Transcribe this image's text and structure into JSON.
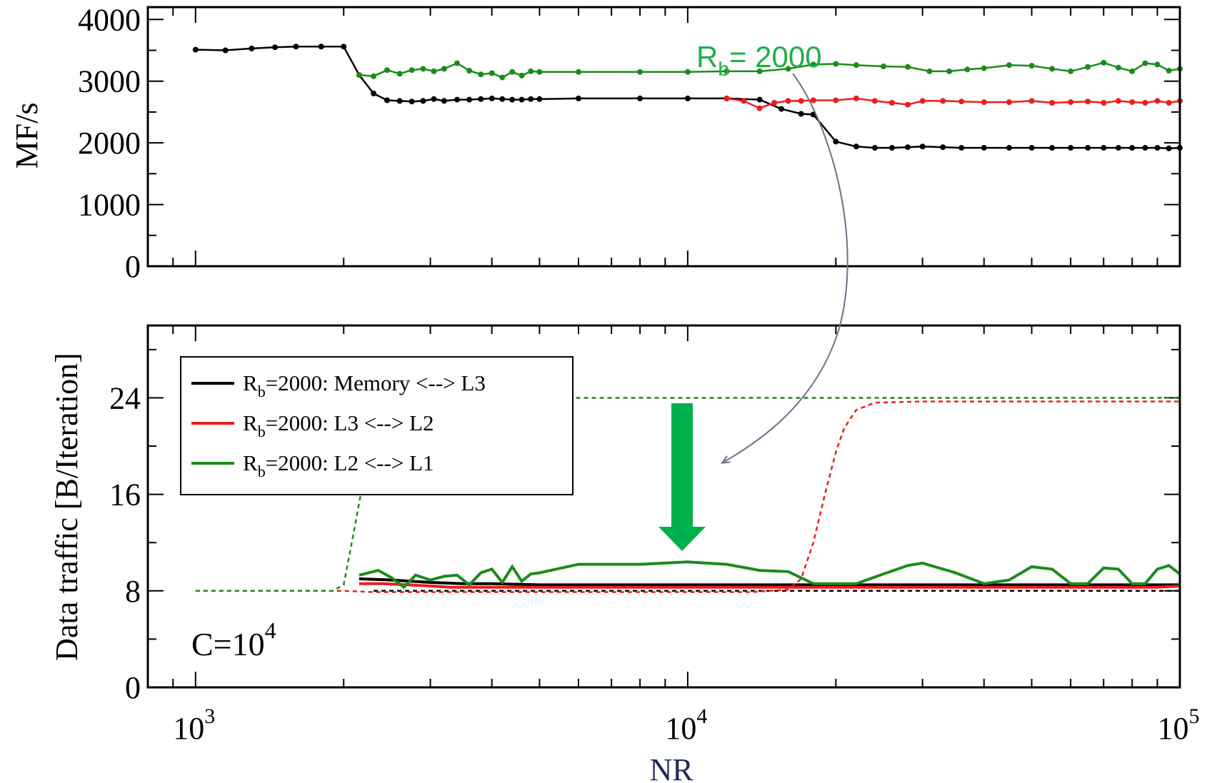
{
  "chart_data": [
    {
      "type": "line",
      "panel": "top",
      "ylabel": "MF/s",
      "ylim": [
        0,
        4200
      ],
      "yticks": [
        "0",
        "1000",
        "2000",
        "3000",
        "4000"
      ],
      "ytick_values": [
        0,
        1000,
        2000,
        3000,
        4000
      ],
      "xlim": [
        800,
        100000
      ],
      "xscale": "log",
      "annotation": {
        "prefix": "R",
        "sub": "b",
        "suffix": "= 2000",
        "color": "#1faf4b"
      },
      "series": [
        {
          "color": "#000000",
          "x": [
            1000,
            1150,
            1300,
            1450,
            1600,
            1800,
            2000,
            2150,
            2300,
            2450,
            2600,
            2750,
            2900,
            3050,
            3200,
            3400,
            3600,
            3800,
            4000,
            4200,
            4400,
            4600,
            4800,
            5000,
            6000,
            8000,
            10000,
            12000,
            14000,
            15500,
            17000,
            18000,
            20000,
            22000,
            24000,
            26000,
            28000,
            30000,
            33000,
            36000,
            40000,
            45000,
            50000,
            55000,
            60000,
            65000,
            70000,
            75000,
            80000,
            85000,
            90000,
            95000,
            100000
          ],
          "y": [
            3510,
            3500,
            3530,
            3550,
            3560,
            3560,
            3560,
            3100,
            2800,
            2690,
            2680,
            2670,
            2680,
            2710,
            2680,
            2700,
            2700,
            2710,
            2720,
            2710,
            2700,
            2700,
            2710,
            2710,
            2720,
            2720,
            2720,
            2720,
            2700,
            2550,
            2470,
            2460,
            2020,
            1940,
            1920,
            1920,
            1930,
            1940,
            1930,
            1920,
            1920,
            1920,
            1920,
            1920,
            1920,
            1920,
            1920,
            1920,
            1920,
            1920,
            1920,
            1910,
            1920
          ]
        },
        {
          "color": "#1a8c1a",
          "x": [
            2150,
            2300,
            2450,
            2600,
            2750,
            2900,
            3050,
            3200,
            3400,
            3600,
            3800,
            4000,
            4200,
            4400,
            4600,
            4800,
            5000,
            6000,
            8000,
            10000,
            12000,
            14000,
            16000,
            18000,
            20000,
            22000,
            25000,
            28000,
            31000,
            34000,
            37000,
            40000,
            45000,
            50000,
            55000,
            60000,
            65000,
            70000,
            75000,
            80000,
            85000,
            90000,
            95000,
            100000
          ],
          "y": [
            3100,
            3080,
            3180,
            3120,
            3180,
            3200,
            3160,
            3200,
            3290,
            3170,
            3110,
            3130,
            3060,
            3150,
            3090,
            3160,
            3150,
            3150,
            3150,
            3150,
            3160,
            3160,
            3200,
            3270,
            3280,
            3260,
            3240,
            3230,
            3160,
            3160,
            3190,
            3210,
            3260,
            3250,
            3200,
            3160,
            3230,
            3300,
            3220,
            3160,
            3290,
            3270,
            3170,
            3200
          ]
        },
        {
          "color": "#ee1c1c",
          "x": [
            12000,
            13000,
            14000,
            15000,
            16000,
            17000,
            18000,
            20000,
            22000,
            24000,
            26000,
            28000,
            30000,
            33000,
            36000,
            40000,
            45000,
            50000,
            55000,
            60000,
            65000,
            70000,
            75000,
            80000,
            85000,
            90000,
            95000,
            100000
          ],
          "y": [
            2720,
            2680,
            2560,
            2650,
            2680,
            2680,
            2690,
            2690,
            2720,
            2680,
            2650,
            2620,
            2680,
            2680,
            2670,
            2660,
            2660,
            2680,
            2650,
            2660,
            2670,
            2650,
            2680,
            2660,
            2650,
            2680,
            2650,
            2680
          ]
        }
      ]
    },
    {
      "type": "line",
      "panel": "bottom",
      "ylabel": "Data traffic [B/Iteration]",
      "ylim": [
        0,
        30
      ],
      "yticks": [
        "0",
        "8",
        "16",
        "24"
      ],
      "ytick_values": [
        0,
        8,
        16,
        24
      ],
      "xlim": [
        800,
        100000
      ],
      "xscale": "log",
      "xlabel": "NR",
      "xticks": [
        {
          "base": "10",
          "exp": "3",
          "value": 1000
        },
        {
          "base": "10",
          "exp": "4",
          "value": 10000
        },
        {
          "base": "10",
          "exp": "5",
          "value": 100000
        }
      ],
      "note": {
        "base": "C=10",
        "exp": "4"
      },
      "legend": {
        "placement": "upper-left",
        "entries": [
          {
            "pre": "R",
            "sub": "b",
            "post": "=2000: Memory <--> L3",
            "color": "#000000"
          },
          {
            "pre": "R",
            "sub": "b",
            "post": "=2000: L3 <--> L2",
            "color": "#ee1c1c"
          },
          {
            "pre": "R",
            "sub": "b",
            "post": "=2000: L2 <--> L1",
            "color": "#1a8c1a"
          }
        ]
      },
      "series": [
        {
          "label": "Memory <--> L3",
          "color": "#000000",
          "style": "solid",
          "x": [
            2150,
            2500,
            3000,
            3500,
            4000,
            5000,
            6000,
            8000,
            10000,
            15000,
            20000,
            30000,
            40000,
            50000,
            60000,
            80000,
            100000
          ],
          "y": [
            9.0,
            8.9,
            8.7,
            8.6,
            8.6,
            8.5,
            8.5,
            8.5,
            8.5,
            8.5,
            8.5,
            8.5,
            8.5,
            8.5,
            8.5,
            8.5,
            8.5
          ]
        },
        {
          "label": "L3 <--> L2",
          "color": "#ee1c1c",
          "style": "solid",
          "x": [
            2150,
            2400,
            2700,
            3000,
            3300,
            3600,
            4000,
            5000,
            6000,
            8000,
            10000,
            12000,
            14000,
            17000,
            20000,
            25000,
            30000,
            40000,
            50000,
            60000,
            70000,
            80000,
            90000,
            100000
          ],
          "y": [
            8.6,
            8.6,
            8.5,
            8.4,
            8.3,
            8.3,
            8.3,
            8.3,
            8.3,
            8.3,
            8.3,
            8.3,
            8.3,
            8.3,
            8.3,
            8.3,
            8.3,
            8.3,
            8.3,
            8.3,
            8.3,
            8.3,
            8.3,
            8.4
          ]
        },
        {
          "label": "L2 <--> L1",
          "color": "#1a8c1a",
          "style": "solid",
          "x": [
            2150,
            2350,
            2500,
            2650,
            2800,
            3000,
            3200,
            3400,
            3600,
            3800,
            4000,
            4200,
            4400,
            4600,
            4800,
            5000,
            6000,
            8000,
            10000,
            12000,
            14000,
            16000,
            18000,
            20000,
            22000,
            25000,
            28000,
            30000,
            35000,
            40000,
            45000,
            50000,
            55000,
            60000,
            65000,
            70000,
            75000,
            80000,
            85000,
            90000,
            95000,
            100000
          ],
          "y": [
            9.3,
            9.7,
            9.1,
            8.3,
            9.3,
            8.9,
            9.2,
            9.3,
            8.5,
            9.5,
            9.8,
            8.7,
            10.0,
            8.8,
            9.4,
            9.5,
            10.2,
            10.2,
            10.4,
            10.2,
            9.7,
            9.6,
            8.6,
            8.6,
            8.6,
            9.4,
            10.1,
            10.3,
            9.5,
            8.6,
            8.9,
            10.0,
            9.8,
            8.6,
            8.6,
            9.9,
            9.8,
            8.6,
            8.6,
            9.8,
            10.1,
            9.4
          ]
        },
        {
          "color": "#000000",
          "style": "dashed",
          "x": [
            2300,
            3000,
            5000,
            10000,
            20000,
            50000,
            100000
          ],
          "y": [
            8.0,
            8.0,
            8.0,
            8.0,
            8.0,
            8.0,
            8.0
          ]
        },
        {
          "color": "#ee1c1c",
          "style": "dashed",
          "x": [
            1000,
            2000,
            2300,
            3000,
            5000,
            10000,
            13500,
            16000,
            17000,
            18000,
            19000,
            20000,
            20800,
            22000,
            24000,
            30000,
            50000,
            100000
          ],
          "y": [
            8.0,
            8.0,
            7.9,
            7.9,
            7.9,
            7.9,
            7.9,
            8.1,
            9.0,
            12.0,
            16.0,
            19.5,
            21.5,
            23.0,
            23.6,
            23.7,
            23.7,
            23.7
          ]
        },
        {
          "color": "#1a8c1a",
          "style": "dashed",
          "x": [
            1000,
            1900,
            2000,
            2100,
            2200,
            2400,
            100000
          ],
          "y": [
            8.0,
            8.0,
            8.5,
            13.0,
            17.5,
            24.0,
            24.0
          ]
        }
      ]
    }
  ]
}
